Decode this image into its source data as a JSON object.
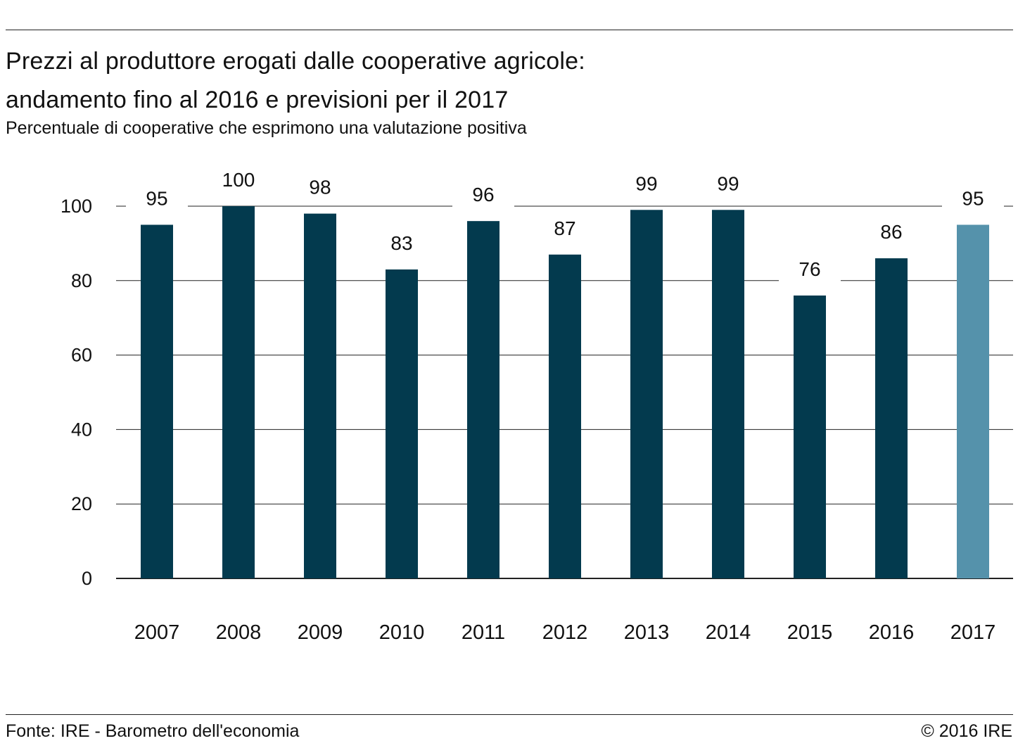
{
  "chart_data": {
    "type": "bar",
    "title": "Prezzi al produttore erogati dalle cooperative agricole: andamento fino al 2016 e previsioni per il 2017",
    "title_lines": [
      "Prezzi al produttore erogati dalle cooperative agricole:",
      "andamento fino al 2016 e previsioni per il 2017"
    ],
    "subtitle": "Percentuale di cooperative che esprimono una valutazione positiva",
    "categories": [
      "2007",
      "2008",
      "2009",
      "2010",
      "2011",
      "2012",
      "2013",
      "2014",
      "2015",
      "2016",
      "2017"
    ],
    "values": [
      95,
      100,
      98,
      83,
      96,
      87,
      99,
      99,
      76,
      86,
      95
    ],
    "value_labels": [
      "95",
      "100",
      "98",
      "83",
      "96",
      "87",
      "99",
      "99",
      "76",
      "86",
      "95"
    ],
    "forecast_categories": [
      "2017"
    ],
    "ylim": [
      0,
      100
    ],
    "yticks": [
      "0",
      "20",
      "40",
      "60",
      "80",
      "100"
    ],
    "ytick_values": [
      0,
      20,
      40,
      60,
      80,
      100
    ],
    "xlabel": "",
    "ylabel": "",
    "grid": true,
    "colors": {
      "actual": "#033a4e",
      "forecast": "#5592ab",
      "grid": "#222222"
    }
  },
  "footer": {
    "source": "Fonte: IRE - Barometro dell'economia",
    "copyright": "© 2016 IRE"
  }
}
